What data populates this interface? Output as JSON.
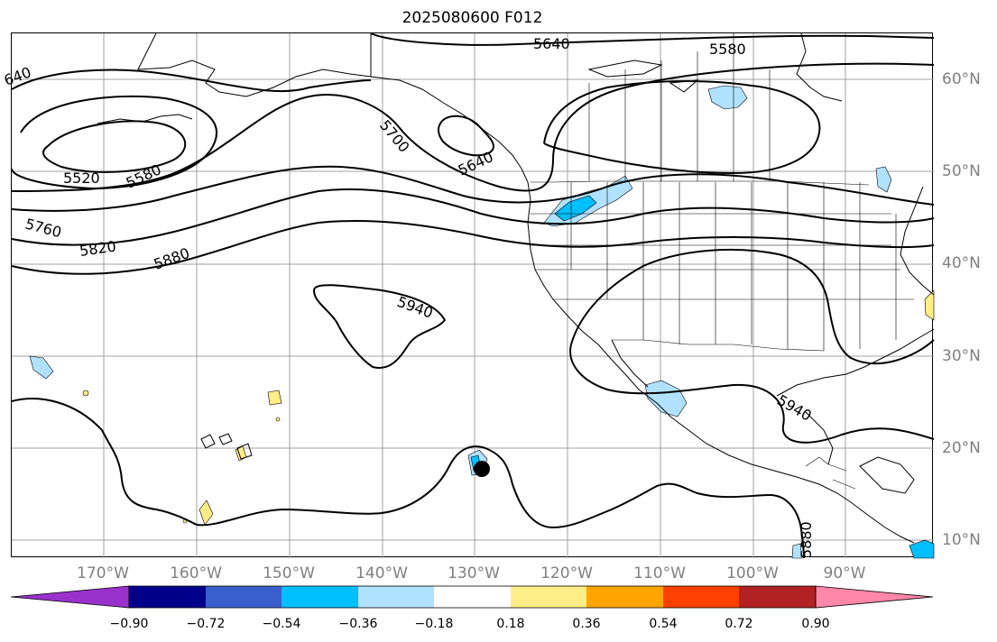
{
  "title": "2025080600 F012",
  "lat_labels": [
    {
      "text": "60°N",
      "lat": 60
    },
    {
      "text": "50°N",
      "lat": 50
    },
    {
      "text": "40°N",
      "lat": 40
    },
    {
      "text": "30°N",
      "lat": 30
    },
    {
      "text": "20°N",
      "lat": 20
    },
    {
      "text": "10°N",
      "lat": 10
    }
  ],
  "lon_labels": [
    {
      "text": "170°W",
      "lon": -170
    },
    {
      "text": "160°W",
      "lon": -160
    },
    {
      "text": "150°W",
      "lon": -150
    },
    {
      "text": "140°W",
      "lon": -140
    },
    {
      "text": "130°W",
      "lon": -130
    },
    {
      "text": "120°W",
      "lon": -120
    },
    {
      "text": "110°W",
      "lon": -110
    },
    {
      "text": "100°W",
      "lon": -100
    },
    {
      "text": "90°W",
      "lon": -90
    }
  ],
  "contour_labels": [
    "640",
    "5640",
    "5580",
    "5520",
    "5580",
    "5700",
    "5640",
    "5760",
    "5820",
    "5880",
    "5940",
    "5940",
    "5880"
  ],
  "colorbar": {
    "ticks": [
      "−0.90",
      "−0.72",
      "−0.54",
      "−0.36",
      "−0.18",
      "0.18",
      "0.36",
      "0.54",
      "0.72",
      "0.90"
    ],
    "under_color": "#9932cc",
    "over_color": "#ff88aa",
    "colors": [
      "#00008b",
      "#3a5fcd",
      "#00bfff",
      "#b0e2ff",
      "#ffffff",
      "#ffee88",
      "#ffa500",
      "#ff4000",
      "#b22222"
    ]
  },
  "colors": {
    "grid": "#a0a0a0",
    "contour": "#000000",
    "coast": "#000000"
  },
  "marker": {
    "name": "storm-center",
    "lon": -129.5,
    "lat": 17.7
  }
}
